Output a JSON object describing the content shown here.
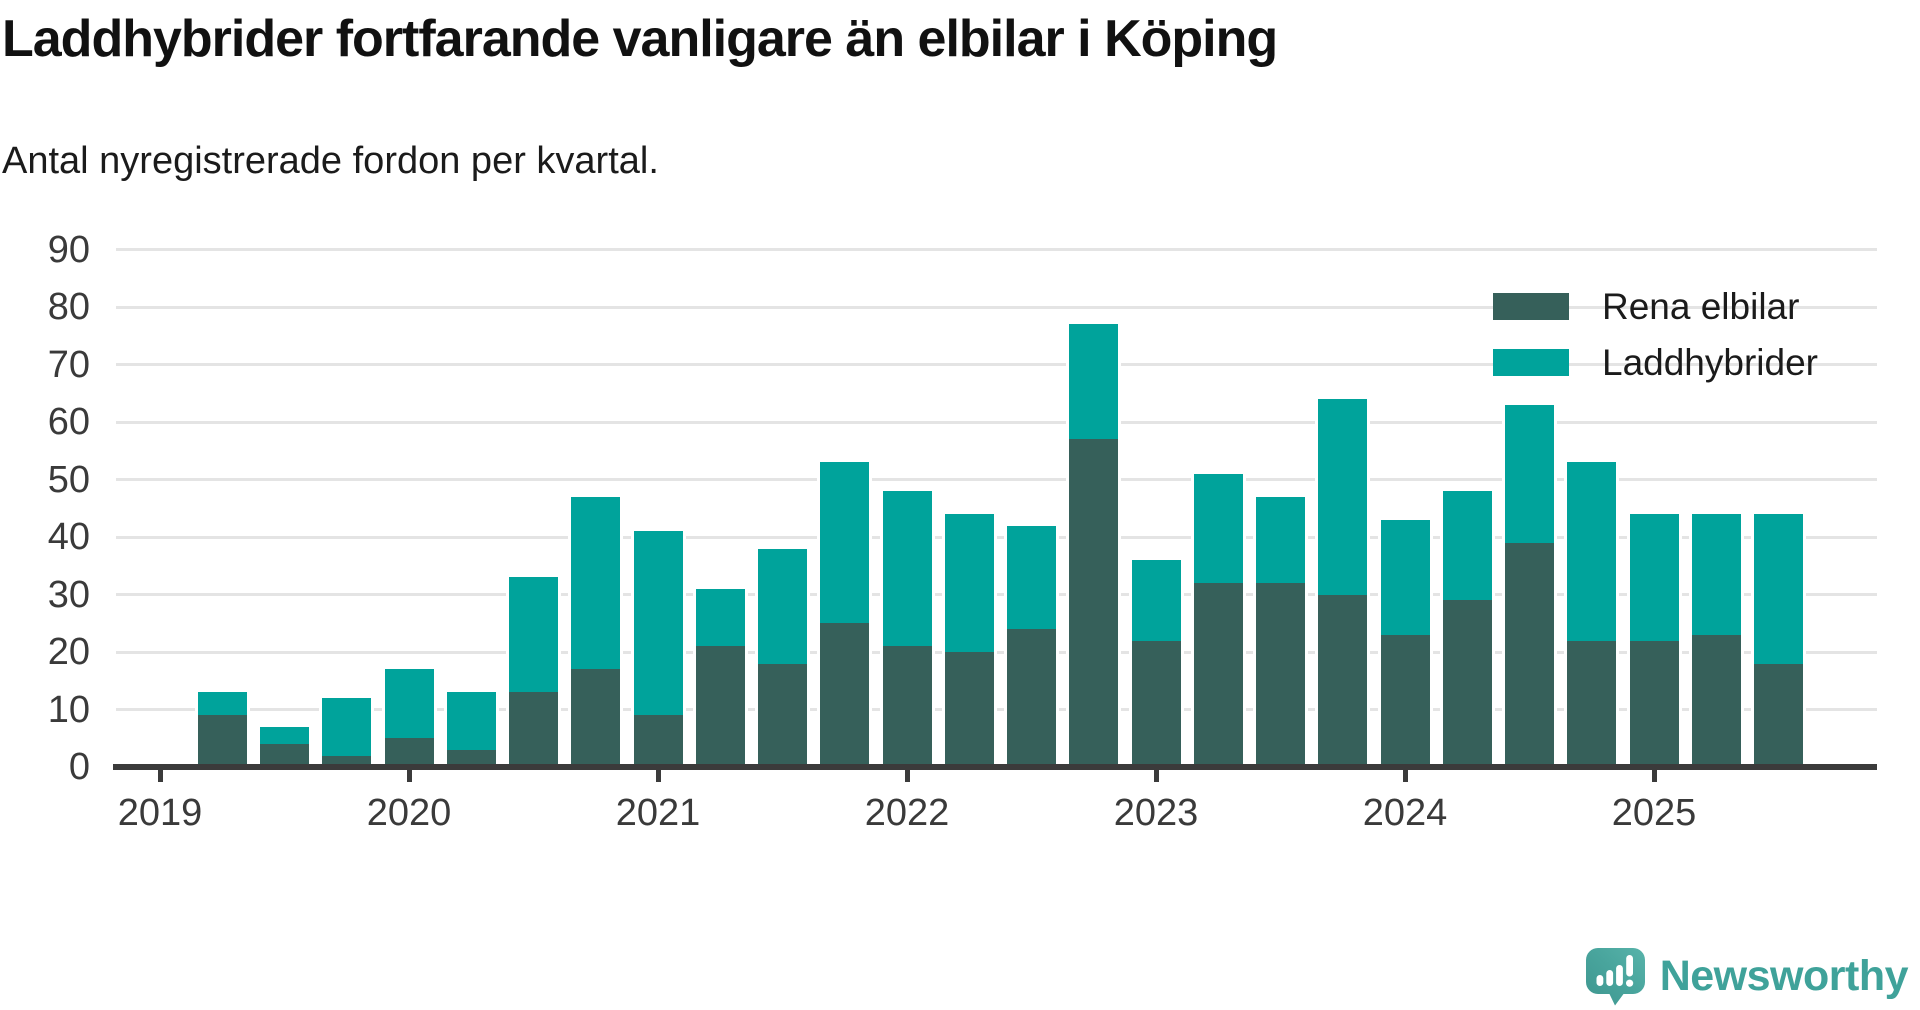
{
  "chart_data": {
    "type": "bar",
    "stacked": true,
    "title": "Laddhybrider fortfarande vanligare än elbilar i Köping",
    "subtitle": "Antal nyregistrerade fordon per kvartal.",
    "categories": [
      "2019-K2",
      "2019-K3",
      "2019-K4",
      "2020-K1",
      "2020-K2",
      "2020-K3",
      "2020-K4",
      "2021-K1",
      "2021-K2",
      "2021-K3",
      "2021-K4",
      "2022-K1",
      "2022-K2",
      "2022-K3",
      "2022-K4",
      "2023-K1",
      "2023-K2",
      "2023-K3",
      "2023-K4",
      "2024-K1",
      "2024-K2",
      "2024-K3",
      "2024-K4",
      "2025-K1",
      "2025-K2",
      "2025-K3"
    ],
    "series": [
      {
        "name": "Rena elbilar",
        "color": "#36605a",
        "values": [
          9,
          4,
          2,
          5,
          3,
          13,
          17,
          9,
          21,
          18,
          25,
          21,
          20,
          24,
          57,
          22,
          32,
          32,
          30,
          23,
          29,
          39,
          22,
          22,
          23,
          18
        ]
      },
      {
        "name": "Laddhybrider",
        "color": "#00a39b",
        "values": [
          4,
          3,
          10,
          12,
          10,
          20,
          30,
          32,
          10,
          20,
          28,
          27,
          24,
          18,
          20,
          14,
          19,
          15,
          34,
          20,
          19,
          24,
          31,
          22,
          21,
          26
        ]
      }
    ],
    "stack_totals": [
      13,
      7,
      12,
      17,
      13,
      33,
      47,
      41,
      31,
      38,
      53,
      48,
      44,
      42,
      77,
      36,
      51,
      47,
      64,
      43,
      48,
      63,
      53,
      44,
      44,
      44
    ],
    "ylim": [
      0,
      90
    ],
    "y_ticks": [
      0,
      10,
      20,
      30,
      40,
      50,
      60,
      70,
      80,
      90
    ],
    "x_ticks": [
      "2019",
      "2020",
      "2021",
      "2022",
      "2023",
      "2024",
      "2025"
    ],
    "grid": "horizontal",
    "legend_position": "top-right",
    "colors": {
      "axis": "#3b3b3b",
      "grid": "#e4e4e4",
      "tick_text": "#3a3a3a",
      "title_text": "#111111"
    }
  },
  "legend": {
    "items": [
      {
        "label": "Rena elbilar",
        "color": "#36605a"
      },
      {
        "label": "Laddhybrider",
        "color": "#00a39b"
      }
    ]
  },
  "footer": {
    "brand": "Newsworthy",
    "brand_color": "#3fa29a"
  }
}
